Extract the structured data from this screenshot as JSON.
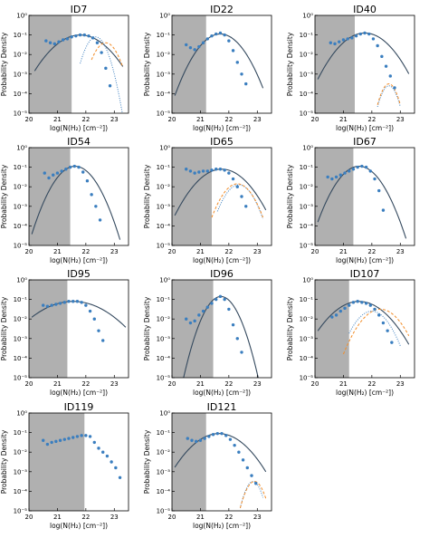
{
  "chart_data": {
    "type": "scatter",
    "layout": {
      "rows": 4,
      "cols": 3
    },
    "xlim": [
      20,
      23.5
    ],
    "ylim_log10": [
      -5,
      0
    ],
    "yscale": "log",
    "xlabel": "log(N(H₂) [cm⁻²])",
    "ylabel": "Probability Density",
    "x_ticks": [
      "20",
      "21",
      "22",
      "23"
    ],
    "y_ticks": [
      "10⁻⁵",
      "10⁻⁴",
      "10⁻³",
      "10⁻²",
      "10⁻¹",
      "10⁰"
    ],
    "colors": {
      "points": "#3a7ebf",
      "lognormal": "#34495e",
      "powerlaw_fit": "#3a7ebf",
      "powerlaw_dashed": "#f28c28",
      "shade": "#b0b0b0"
    },
    "panels": [
      {
        "title": "ID7",
        "shade_end": 21.5,
        "points": [
          [
            20.6,
            -1.3
          ],
          [
            20.75,
            -1.4
          ],
          [
            20.9,
            -1.45
          ],
          [
            21.05,
            -1.35
          ],
          [
            21.2,
            -1.25
          ],
          [
            21.35,
            -1.2
          ],
          [
            21.5,
            -1.1
          ],
          [
            21.65,
            -1.05
          ],
          [
            21.8,
            -1.0
          ],
          [
            21.95,
            -1.0
          ],
          [
            22.1,
            -1.05
          ],
          [
            22.25,
            -1.15
          ],
          [
            22.4,
            -1.4
          ],
          [
            22.55,
            -1.9
          ],
          [
            22.7,
            -2.7
          ],
          [
            22.85,
            -3.6
          ]
        ],
        "curves": [
          {
            "style": "solid",
            "color": "lognormal",
            "mu": 21.8,
            "sigma": 0.55,
            "peak": -1.0,
            "from": 20.2,
            "to": 23.3
          },
          {
            "style": "dotted",
            "color": "powerlaw_fit",
            "mu": 22.35,
            "sigma": 0.22,
            "peak": -1.1,
            "from": 21.8,
            "to": 23.3
          },
          {
            "style": "dashed",
            "color": "powerlaw_dashed",
            "mu": 22.7,
            "sigma": 0.25,
            "peak": -1.4,
            "from": 22.2,
            "to": 23.3
          }
        ]
      },
      {
        "title": "ID22",
        "shade_end": 21.2,
        "points": [
          [
            20.5,
            -1.5
          ],
          [
            20.65,
            -1.65
          ],
          [
            20.8,
            -1.75
          ],
          [
            20.95,
            -1.6
          ],
          [
            21.1,
            -1.4
          ],
          [
            21.25,
            -1.2
          ],
          [
            21.4,
            -1.05
          ],
          [
            21.55,
            -0.95
          ],
          [
            21.7,
            -0.9
          ],
          [
            21.85,
            -1.0
          ],
          [
            22.0,
            -1.3
          ],
          [
            22.15,
            -1.8
          ],
          [
            22.3,
            -2.4
          ],
          [
            22.45,
            -3.0
          ],
          [
            22.6,
            -3.5
          ]
        ],
        "curves": [
          {
            "style": "solid",
            "color": "lognormal",
            "mu": 21.7,
            "sigma": 0.42,
            "peak": -0.95,
            "from": 20.1,
            "to": 23.2
          }
        ]
      },
      {
        "title": "ID40",
        "shade_end": 21.4,
        "points": [
          [
            20.55,
            -1.4
          ],
          [
            20.7,
            -1.45
          ],
          [
            20.85,
            -1.35
          ],
          [
            21.0,
            -1.25
          ],
          [
            21.15,
            -1.2
          ],
          [
            21.3,
            -1.15
          ],
          [
            21.45,
            -1.05
          ],
          [
            21.6,
            -0.95
          ],
          [
            21.75,
            -0.9
          ],
          [
            21.9,
            -0.95
          ],
          [
            22.05,
            -1.2
          ],
          [
            22.2,
            -1.55
          ],
          [
            22.35,
            -2.1
          ],
          [
            22.5,
            -2.6
          ],
          [
            22.65,
            -3.1
          ],
          [
            22.8,
            -3.7
          ]
        ],
        "curves": [
          {
            "style": "solid",
            "color": "lognormal",
            "mu": 21.75,
            "sigma": 0.5,
            "peak": -0.9,
            "from": 20.1,
            "to": 23.3
          },
          {
            "style": "dotted",
            "color": "powerlaw_fit",
            "mu": 22.6,
            "sigma": 0.18,
            "peak": -3.6,
            "from": 22.2,
            "to": 23.0
          },
          {
            "style": "dashed",
            "color": "powerlaw_dashed",
            "mu": 22.6,
            "sigma": 0.18,
            "peak": -3.5,
            "from": 22.2,
            "to": 23.0
          }
        ]
      },
      {
        "title": "ID54",
        "shade_end": 21.45,
        "points": [
          [
            20.55,
            -1.3
          ],
          [
            20.7,
            -1.55
          ],
          [
            20.85,
            -1.4
          ],
          [
            21.0,
            -1.3
          ],
          [
            21.15,
            -1.2
          ],
          [
            21.3,
            -1.1
          ],
          [
            21.45,
            -1.0
          ],
          [
            21.6,
            -0.95
          ],
          [
            21.75,
            -1.0
          ],
          [
            21.9,
            -1.25
          ],
          [
            22.05,
            -1.7
          ],
          [
            22.2,
            -2.4
          ],
          [
            22.35,
            -3.0
          ],
          [
            22.5,
            -3.7
          ]
        ],
        "curves": [
          {
            "style": "solid",
            "color": "lognormal",
            "mu": 21.62,
            "sigma": 0.38,
            "peak": -0.95,
            "from": 20.1,
            "to": 23.2
          }
        ]
      },
      {
        "title": "ID65",
        "shade_end": 21.4,
        "points": [
          [
            20.5,
            -1.1
          ],
          [
            20.65,
            -1.2
          ],
          [
            20.8,
            -1.3
          ],
          [
            20.95,
            -1.25
          ],
          [
            21.1,
            -1.2
          ],
          [
            21.25,
            -1.2
          ],
          [
            21.4,
            -1.15
          ],
          [
            21.55,
            -1.1
          ],
          [
            21.7,
            -1.1
          ],
          [
            21.85,
            -1.15
          ],
          [
            22.0,
            -1.3
          ],
          [
            22.15,
            -1.6
          ],
          [
            22.3,
            -2.0
          ],
          [
            22.45,
            -2.5
          ],
          [
            22.6,
            -3.0
          ]
        ],
        "curves": [
          {
            "style": "solid",
            "color": "lognormal",
            "mu": 21.75,
            "sigma": 0.5,
            "peak": -1.1,
            "from": 20.1,
            "to": 23.3
          },
          {
            "style": "dotted",
            "color": "powerlaw_fit",
            "mu": 22.35,
            "sigma": 0.3,
            "peak": -1.9,
            "from": 21.6,
            "to": 23.2
          },
          {
            "style": "dashed",
            "color": "powerlaw_dashed",
            "mu": 22.3,
            "sigma": 0.32,
            "peak": -1.85,
            "from": 21.4,
            "to": 23.2
          }
        ]
      },
      {
        "title": "ID67",
        "shade_end": 21.35,
        "points": [
          [
            20.45,
            -1.5
          ],
          [
            20.6,
            -1.6
          ],
          [
            20.75,
            -1.5
          ],
          [
            20.9,
            -1.4
          ],
          [
            21.05,
            -1.3
          ],
          [
            21.2,
            -1.2
          ],
          [
            21.35,
            -1.1
          ],
          [
            21.5,
            -1.0
          ],
          [
            21.65,
            -0.95
          ],
          [
            21.8,
            -1.0
          ],
          [
            21.95,
            -1.2
          ],
          [
            22.1,
            -1.6
          ],
          [
            22.25,
            -2.2
          ],
          [
            22.4,
            -3.2
          ]
        ],
        "curves": [
          {
            "style": "solid",
            "color": "lognormal",
            "mu": 21.55,
            "sigma": 0.4,
            "peak": -0.95,
            "from": 20.1,
            "to": 23.2
          }
        ]
      },
      {
        "title": "ID95",
        "shade_end": 21.35,
        "points": [
          [
            20.5,
            -1.3
          ],
          [
            20.65,
            -1.35
          ],
          [
            20.8,
            -1.3
          ],
          [
            20.95,
            -1.25
          ],
          [
            21.1,
            -1.2
          ],
          [
            21.25,
            -1.15
          ],
          [
            21.4,
            -1.1
          ],
          [
            21.55,
            -1.1
          ],
          [
            21.7,
            -1.1
          ],
          [
            21.85,
            -1.15
          ],
          [
            22.0,
            -1.3
          ],
          [
            22.15,
            -1.6
          ],
          [
            22.3,
            -2.0
          ],
          [
            22.45,
            -2.6
          ],
          [
            22.6,
            -3.1
          ]
        ],
        "curves": [
          {
            "style": "solid",
            "color": "lognormal",
            "mu": 21.55,
            "sigma": 0.75,
            "peak": -1.1,
            "from": 20.1,
            "to": 23.4
          }
        ]
      },
      {
        "title": "ID96",
        "shade_end": 21.45,
        "points": [
          [
            20.5,
            -2.0
          ],
          [
            20.65,
            -2.2
          ],
          [
            20.8,
            -2.1
          ],
          [
            20.95,
            -1.8
          ],
          [
            21.1,
            -1.6
          ],
          [
            21.25,
            -1.4
          ],
          [
            21.4,
            -1.2
          ],
          [
            21.55,
            -1.0
          ],
          [
            21.7,
            -0.85
          ],
          [
            21.85,
            -1.0
          ],
          [
            22.0,
            -1.5
          ],
          [
            22.15,
            -2.3
          ],
          [
            22.3,
            -3.0
          ],
          [
            22.45,
            -3.7
          ]
        ],
        "curves": [
          {
            "style": "solid",
            "color": "lognormal",
            "mu": 21.72,
            "sigma": 0.3,
            "peak": -0.85,
            "from": 20.1,
            "to": 23.2
          }
        ]
      },
      {
        "title": "ID107",
        "shade_end": 21.2,
        "points": [
          [
            20.6,
            -1.9
          ],
          [
            20.75,
            -1.8
          ],
          [
            20.9,
            -1.6
          ],
          [
            21.05,
            -1.45
          ],
          [
            21.2,
            -1.3
          ],
          [
            21.35,
            -1.15
          ],
          [
            21.5,
            -1.1
          ],
          [
            21.65,
            -1.15
          ],
          [
            21.8,
            -1.2
          ],
          [
            21.95,
            -1.3
          ],
          [
            22.1,
            -1.5
          ],
          [
            22.25,
            -1.8
          ],
          [
            22.4,
            -2.2
          ],
          [
            22.55,
            -2.6
          ],
          [
            22.7,
            -3.2
          ]
        ],
        "curves": [
          {
            "style": "solid",
            "color": "lognormal",
            "mu": 21.55,
            "sigma": 0.55,
            "peak": -1.1,
            "from": 20.1,
            "to": 23.3
          },
          {
            "style": "dotted",
            "color": "powerlaw_fit",
            "mu": 22.0,
            "sigma": 0.35,
            "peak": -1.6,
            "from": 21.2,
            "to": 23.0
          },
          {
            "style": "dashed",
            "color": "powerlaw_dashed",
            "mu": 22.3,
            "sigma": 0.4,
            "peak": -1.5,
            "from": 21.0,
            "to": 23.3
          }
        ]
      },
      {
        "title": "ID119",
        "shade_end": 21.95,
        "points": [
          [
            20.5,
            -1.4
          ],
          [
            20.65,
            -1.6
          ],
          [
            20.8,
            -1.5
          ],
          [
            20.95,
            -1.45
          ],
          [
            21.1,
            -1.4
          ],
          [
            21.25,
            -1.35
          ],
          [
            21.4,
            -1.3
          ],
          [
            21.55,
            -1.25
          ],
          [
            21.7,
            -1.2
          ],
          [
            21.85,
            -1.15
          ],
          [
            22.0,
            -1.15
          ],
          [
            22.15,
            -1.2
          ],
          [
            22.3,
            -1.5
          ],
          [
            22.45,
            -1.8
          ],
          [
            22.6,
            -2.0
          ],
          [
            22.75,
            -2.2
          ],
          [
            22.9,
            -2.5
          ],
          [
            23.05,
            -2.8
          ],
          [
            23.2,
            -3.3
          ]
        ],
        "curves": []
      },
      {
        "title": "ID121",
        "shade_end": 21.2,
        "points": [
          [
            20.55,
            -1.3
          ],
          [
            20.7,
            -1.4
          ],
          [
            20.85,
            -1.45
          ],
          [
            21.0,
            -1.4
          ],
          [
            21.15,
            -1.3
          ],
          [
            21.3,
            -1.2
          ],
          [
            21.45,
            -1.1
          ],
          [
            21.6,
            -1.05
          ],
          [
            21.75,
            -1.05
          ],
          [
            21.9,
            -1.15
          ],
          [
            22.05,
            -1.35
          ],
          [
            22.2,
            -1.65
          ],
          [
            22.35,
            -2.0
          ],
          [
            22.5,
            -2.4
          ],
          [
            22.65,
            -2.8
          ],
          [
            22.8,
            -3.2
          ],
          [
            22.95,
            -3.6
          ]
        ],
        "curves": [
          {
            "style": "solid",
            "color": "lognormal",
            "mu": 21.65,
            "sigma": 0.55,
            "peak": -1.05,
            "from": 20.1,
            "to": 23.3
          },
          {
            "style": "dotted",
            "color": "powerlaw_fit",
            "mu": 22.85,
            "sigma": 0.18,
            "peak": -3.5,
            "from": 22.4,
            "to": 23.2
          },
          {
            "style": "dashed",
            "color": "powerlaw_dashed",
            "mu": 22.9,
            "sigma": 0.2,
            "peak": -3.5,
            "from": 22.4,
            "to": 23.3
          }
        ]
      }
    ]
  }
}
